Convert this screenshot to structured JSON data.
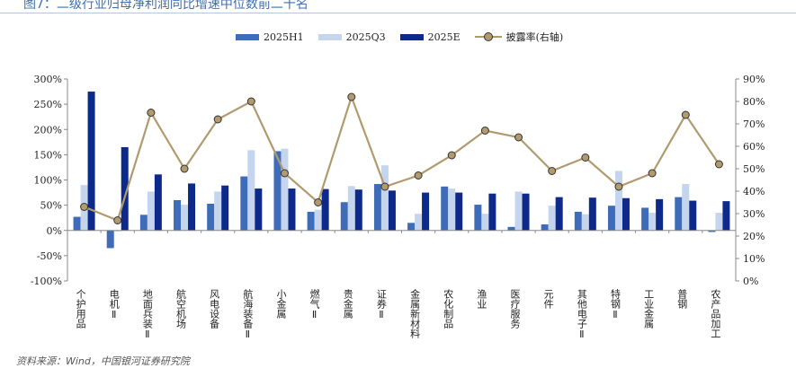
{
  "figure": {
    "title": "图7：二级行业归母净利润同比增速中位数前二十名",
    "source": "资料来源：Wind，中国银河证券研究院"
  },
  "colors": {
    "h1": "#3f6cb9",
    "q3": "#c6d5ee",
    "e": "#0d2a8a",
    "line": "#b09a6e",
    "marker": "#b09a6e"
  },
  "chart_data": {
    "type": "bar",
    "title": "二级行业归母净利润同比增速中位数前二十名",
    "categories": [
      "个护用品",
      "电机Ⅱ",
      "地面兵装Ⅱ",
      "航空机场",
      "风电设备",
      "航海装备Ⅱ",
      "小金属",
      "燃气Ⅱ",
      "贵金属",
      "证券Ⅱ",
      "金属新材料",
      "农化制品",
      "渔业",
      "医疗服务",
      "元件",
      "其他电子Ⅱ",
      "特钢Ⅱ",
      "工业金属",
      "普钢",
      "农产品加工"
    ],
    "series": [
      {
        "name": "2025H1",
        "axis": "left",
        "values": [
          27,
          -35,
          31,
          60,
          53,
          107,
          157,
          37,
          56,
          92,
          15,
          87,
          51,
          7,
          12,
          37,
          49,
          45,
          66,
          -3
        ]
      },
      {
        "name": "2025Q3",
        "axis": "left",
        "values": [
          90,
          -2,
          77,
          51,
          77,
          159,
          162,
          41,
          88,
          129,
          33,
          83,
          33,
          77,
          49,
          32,
          118,
          35,
          92,
          35
        ]
      },
      {
        "name": "2025E",
        "axis": "left",
        "values": [
          275,
          165,
          111,
          93,
          89,
          83,
          83,
          82,
          81,
          79,
          75,
          75,
          73,
          73,
          66,
          65,
          64,
          62,
          59,
          58
        ]
      },
      {
        "name": "披露率(右轴)",
        "axis": "right",
        "type": "line",
        "values": [
          33,
          27,
          75,
          50,
          72,
          80,
          48,
          35,
          82,
          42,
          47,
          56,
          67,
          64,
          49,
          55,
          42,
          48,
          74,
          52
        ]
      }
    ],
    "yleft": {
      "min": -100,
      "max": 300,
      "step": 50,
      "format": "%"
    },
    "yright": {
      "min": 0,
      "max": 90,
      "step": 10,
      "format": "%"
    },
    "legend_position": "top-center"
  }
}
